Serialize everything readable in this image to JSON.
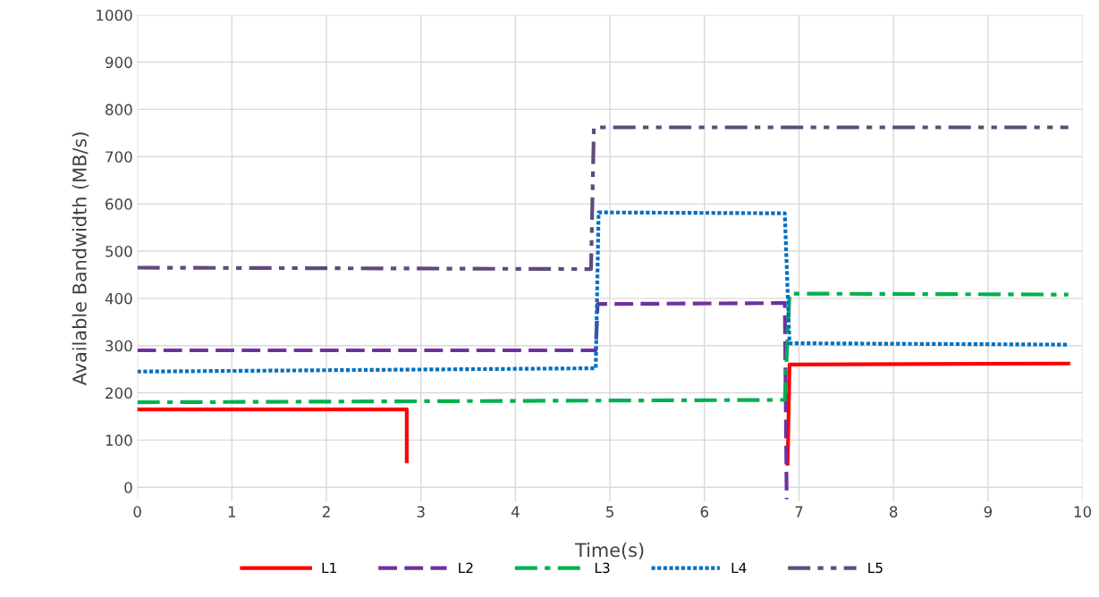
{
  "chart_data": {
    "type": "line",
    "xlabel": "Time(s)",
    "ylabel": "Available Bandwidth (MB/s)",
    "xlim": [
      0,
      10
    ],
    "ylim": [
      -30,
      1000
    ],
    "xticks": [
      0,
      1,
      2,
      3,
      4,
      5,
      6,
      7,
      8,
      9,
      10
    ],
    "yticks": [
      0,
      100,
      200,
      300,
      400,
      500,
      600,
      700,
      800,
      900,
      1000
    ],
    "grid": true,
    "legend": "bottom",
    "series": [
      {
        "name": "L1",
        "color": "#ff0000",
        "line_style": "solid",
        "x": [
          0,
          2.85,
          2.85,
          null,
          6.88,
          6.9,
          9.85
        ],
        "values": [
          165,
          165,
          55,
          null,
          50,
          260,
          262
        ]
      },
      {
        "name": "L2",
        "color": "#7030a0",
        "line_style": "dashed",
        "x": [
          0,
          4.85,
          4.87,
          6.85,
          6.87
        ],
        "values": [
          290,
          290,
          388,
          390,
          -25
        ]
      },
      {
        "name": "L3",
        "color": "#00b050",
        "line_style": "dashdot",
        "x": [
          0,
          6.85,
          6.9,
          9.85
        ],
        "values": [
          180,
          185,
          410,
          408
        ]
      },
      {
        "name": "L4",
        "color": "#0070c0",
        "line_style": "dotted",
        "x": [
          0,
          4.85,
          4.88,
          6.85,
          6.9,
          9.85
        ],
        "values": [
          245,
          252,
          582,
          580,
          305,
          302
        ]
      },
      {
        "name": "L5",
        "color": "#5f4b7b",
        "line_style": "dashdotdot",
        "x": [
          0,
          4.8,
          4.83,
          9.85
        ],
        "values": [
          465,
          462,
          762,
          762
        ]
      }
    ]
  }
}
